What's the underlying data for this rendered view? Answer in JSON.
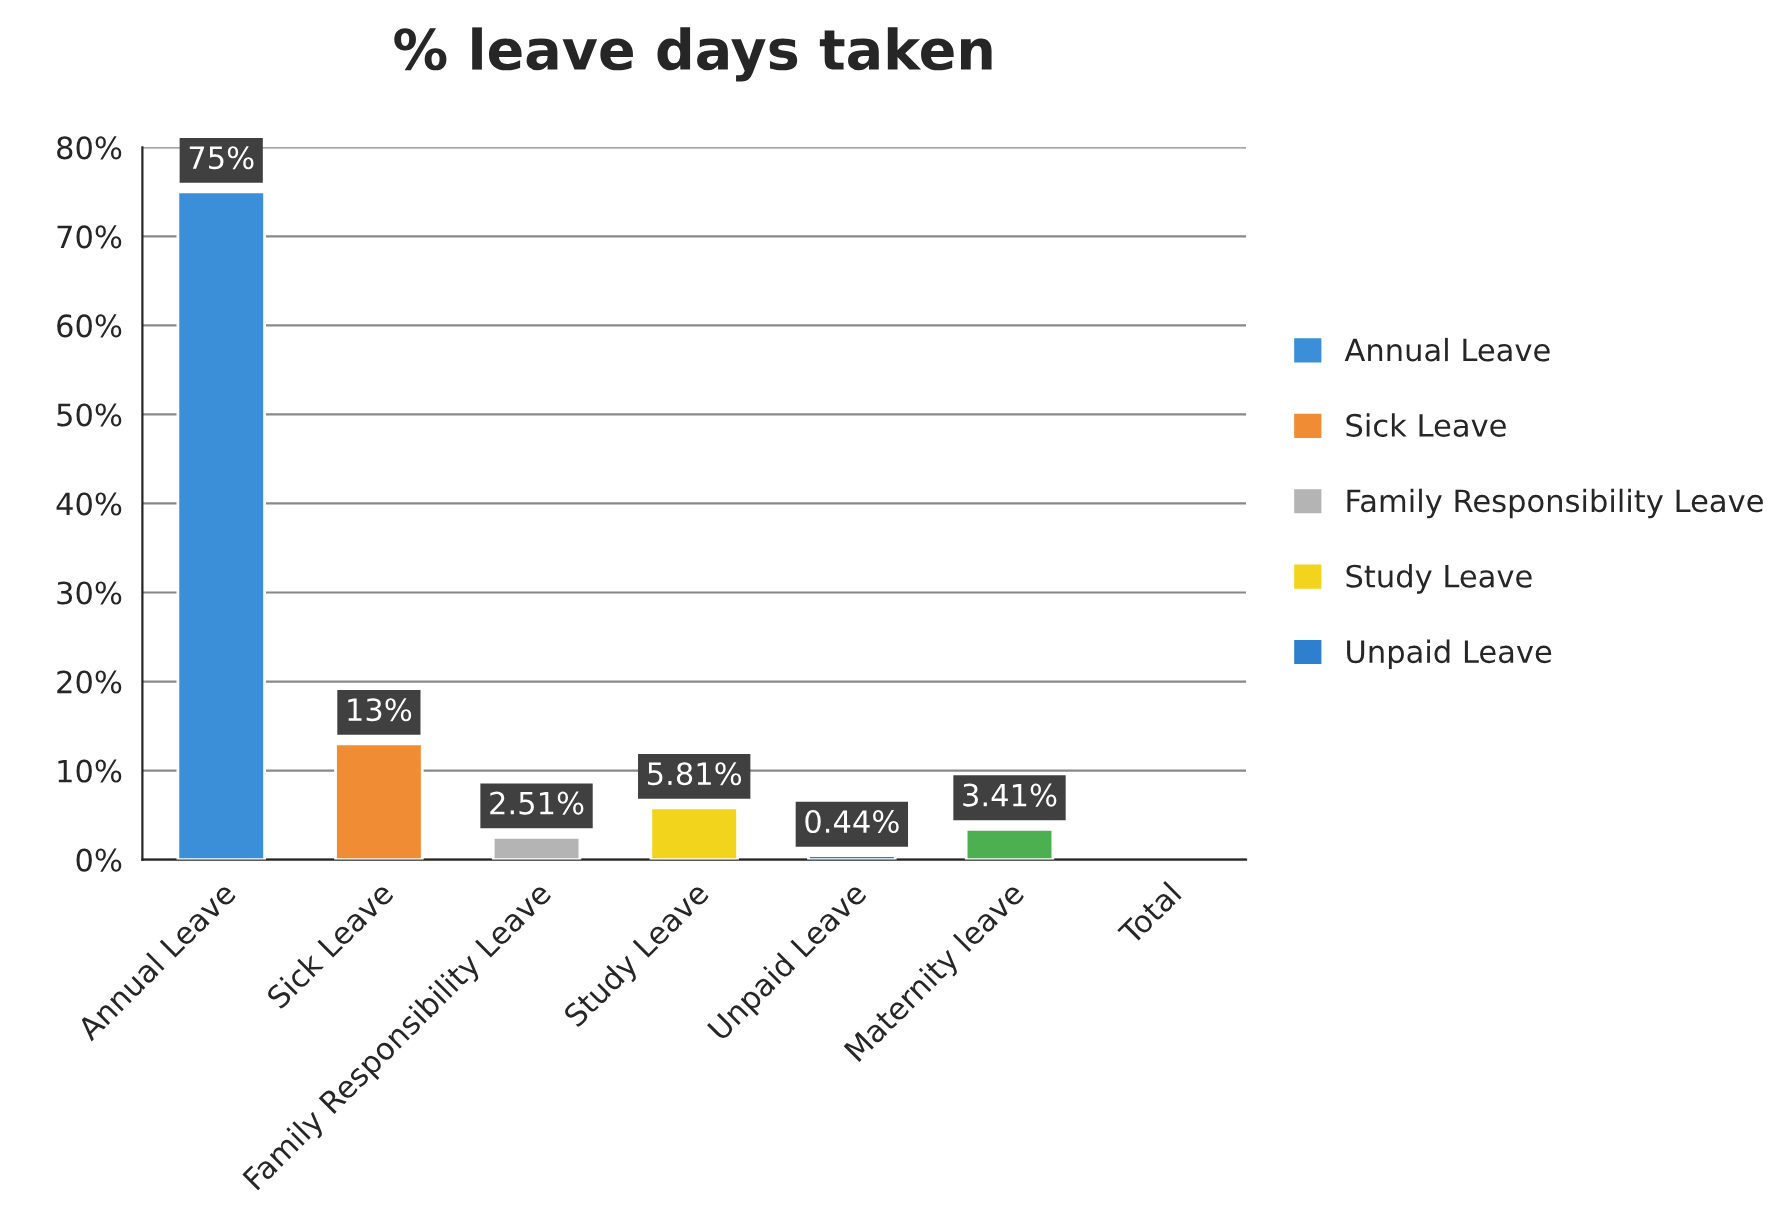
{
  "chart_data": {
    "type": "bar",
    "title": "% leave days taken",
    "categories": [
      "Annual Leave",
      "Sick Leave",
      "Family Responsibility Leave",
      "Study Leave",
      "Unpaid Leave",
      "Maternity leave",
      "Total"
    ],
    "stacked": true,
    "series": [
      {
        "name": "Annual Leave",
        "color": "#3b8fd8",
        "values": [
          75,
          null,
          null,
          null,
          null,
          null,
          null
        ],
        "value_labels": [
          "75%",
          null,
          null,
          null,
          null,
          null,
          null
        ]
      },
      {
        "name": "Sick Leave",
        "color": "#f08c34",
        "values": [
          null,
          13,
          null,
          null,
          null,
          null,
          null
        ],
        "value_labels": [
          null,
          "13%",
          null,
          null,
          null,
          null,
          null
        ]
      },
      {
        "name": "Family Responsibility Leave",
        "color": "#b4b4b4",
        "values": [
          null,
          null,
          2.51,
          null,
          null,
          null,
          null
        ],
        "value_labels": [
          null,
          null,
          "2.51%",
          null,
          null,
          null,
          null
        ]
      },
      {
        "name": "Study Leave",
        "color": "#f2d41c",
        "values": [
          null,
          null,
          null,
          5.81,
          null,
          null,
          null
        ],
        "value_labels": [
          null,
          null,
          null,
          "5.81%",
          null,
          null,
          null
        ]
      },
      {
        "name": "Unpaid Leave",
        "color": "#2f7fcf",
        "values": [
          null,
          null,
          null,
          null,
          0.44,
          null,
          null
        ],
        "value_labels": [
          null,
          null,
          null,
          null,
          "0.44%",
          null,
          null
        ]
      },
      {
        "color": "#4caf50",
        "values": [
          null,
          null,
          null,
          null,
          null,
          3.41,
          null
        ],
        "value_labels": [
          null,
          null,
          null,
          null,
          null,
          "3.41%",
          null
        ]
      }
    ],
    "ylim": [
      0,
      80
    ],
    "yticks": [
      {
        "value": 0,
        "label": "0%"
      },
      {
        "value": 10,
        "label": "10%"
      },
      {
        "value": 20,
        "label": "20%"
      },
      {
        "value": 30,
        "label": "30%"
      },
      {
        "value": 40,
        "label": "40%"
      },
      {
        "value": 50,
        "label": "50%"
      },
      {
        "value": 60,
        "label": "60%"
      },
      {
        "value": 70,
        "label": "70%"
      },
      {
        "value": 80,
        "label": "80%"
      }
    ],
    "grid": "y",
    "legend": "right"
  }
}
